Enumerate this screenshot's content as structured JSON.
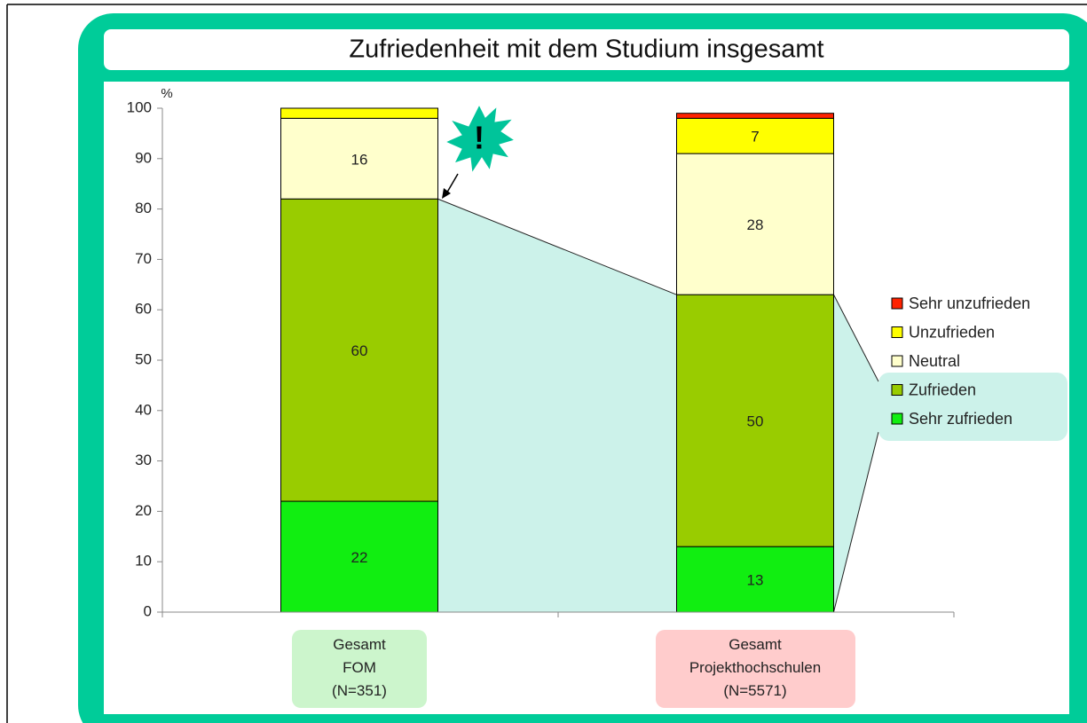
{
  "chart_data": {
    "type": "stacked_bar",
    "title": "Zufriedenheit mit dem Studium insgesamt",
    "y_unit": "%",
    "annotation": "!",
    "categories": [
      "Gesamt\nFOM\n(N=351)",
      "Gesamt\nProjekthochschulen\n(N=5571)"
    ],
    "category_colors": [
      "#ccf5cc",
      "#ffcccc"
    ],
    "series": [
      {
        "name": "Sehr zufrieden",
        "color": "#11ee11",
        "values": [
          22,
          13
        ]
      },
      {
        "name": "Zufrieden",
        "color": "#99cc00",
        "values": [
          60,
          50
        ]
      },
      {
        "name": "Neutral",
        "color": "#ffffcc",
        "values": [
          16,
          28
        ]
      },
      {
        "name": "Unzufrieden",
        "color": "#ffff00",
        "values": [
          2,
          7
        ]
      },
      {
        "name": "Sehr unzufrieden",
        "color": "#ff2200",
        "values": [
          0,
          1
        ]
      }
    ],
    "ylim": [
      0,
      100
    ],
    "yticks": [
      0,
      10,
      20,
      30,
      40,
      50,
      60,
      70,
      80,
      90,
      100
    ],
    "legend": "right"
  }
}
